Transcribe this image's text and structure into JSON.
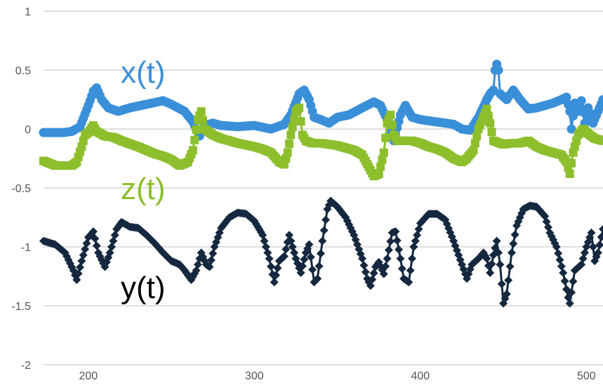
{
  "chart_data": {
    "type": "line",
    "title": "",
    "xlabel": "",
    "ylabel": "",
    "xlim": [
      173,
      510
    ],
    "ylim": [
      -2,
      1
    ],
    "xticks": [
      "200",
      "300",
      "400",
      "500"
    ],
    "yticks": [
      "1",
      "0.5",
      "0",
      "-0.5",
      "-1",
      "-1.5",
      "-2"
    ],
    "grid": true,
    "legend": "inline labels",
    "series": [
      {
        "name": "x(t)",
        "color": "#3a8fd9",
        "marker": "circle",
        "points": [
          [
            173,
            -0.03
          ],
          [
            185,
            -0.03
          ],
          [
            190,
            -0.02
          ],
          [
            195,
            0.02
          ],
          [
            200,
            0.2
          ],
          [
            203,
            0.32
          ],
          [
            205,
            0.35
          ],
          [
            208,
            0.25
          ],
          [
            212,
            0.18
          ],
          [
            218,
            0.15
          ],
          [
            225,
            0.18
          ],
          [
            235,
            0.21
          ],
          [
            245,
            0.24
          ],
          [
            250,
            0.21
          ],
          [
            258,
            0.15
          ],
          [
            263,
            0.06
          ],
          [
            267,
            -0.06
          ],
          [
            270,
            0.03
          ],
          [
            275,
            0.05
          ],
          [
            280,
            0.03
          ],
          [
            290,
            0.02
          ],
          [
            300,
            0.03
          ],
          [
            310,
            0.0
          ],
          [
            318,
            0.04
          ],
          [
            322,
            0.12
          ],
          [
            327,
            0.3
          ],
          [
            330,
            0.33
          ],
          [
            333,
            0.25
          ],
          [
            336,
            0.1
          ],
          [
            340,
            0.08
          ],
          [
            345,
            0.05
          ],
          [
            350,
            0.1
          ],
          [
            357,
            0.12
          ],
          [
            365,
            0.18
          ],
          [
            372,
            0.23
          ],
          [
            376,
            0.2
          ],
          [
            380,
            0.08
          ],
          [
            384,
            -0.1
          ],
          [
            388,
            0.12
          ],
          [
            391,
            0.2
          ],
          [
            395,
            0.1
          ],
          [
            400,
            0.08
          ],
          [
            410,
            0.06
          ],
          [
            420,
            0.04
          ],
          [
            425,
            0.0
          ],
          [
            430,
            -0.01
          ],
          [
            435,
            0.1
          ],
          [
            440,
            0.25
          ],
          [
            442,
            0.3
          ],
          [
            444,
            0.33
          ],
          [
            445,
            0.5
          ],
          [
            446,
            0.55
          ],
          [
            447,
            0.5
          ],
          [
            448,
            0.3
          ],
          [
            452,
            0.25
          ],
          [
            456,
            0.33
          ],
          [
            460,
            0.25
          ],
          [
            465,
            0.17
          ],
          [
            470,
            0.18
          ],
          [
            475,
            0.2
          ],
          [
            480,
            0.22
          ],
          [
            485,
            0.25
          ],
          [
            488,
            0.27
          ],
          [
            490,
            0.15
          ],
          [
            491,
            0.0
          ],
          [
            493,
            0.22
          ],
          [
            495,
            0.15
          ],
          [
            497,
            0.24
          ],
          [
            499,
            0.05
          ],
          [
            501,
            0.18
          ],
          [
            504,
            0.05
          ],
          [
            507,
            0.15
          ],
          [
            510,
            0.25
          ]
        ]
      },
      {
        "name": "y(t)",
        "color": "#15283f",
        "marker": "diamond",
        "points": [
          [
            173,
            -0.95
          ],
          [
            180,
            -0.98
          ],
          [
            186,
            -1.05
          ],
          [
            191,
            -1.2
          ],
          [
            193,
            -1.28
          ],
          [
            196,
            -1.12
          ],
          [
            200,
            -0.92
          ],
          [
            203,
            -0.87
          ],
          [
            206,
            -1.05
          ],
          [
            210,
            -1.17
          ],
          [
            213,
            -1.05
          ],
          [
            217,
            -0.85
          ],
          [
            220,
            -0.79
          ],
          [
            225,
            -0.83
          ],
          [
            230,
            -0.84
          ],
          [
            235,
            -0.9
          ],
          [
            240,
            -0.97
          ],
          [
            245,
            -1.05
          ],
          [
            250,
            -1.12
          ],
          [
            255,
            -1.15
          ],
          [
            258,
            -1.2
          ],
          [
            262,
            -1.28
          ],
          [
            265,
            -1.2
          ],
          [
            268,
            -1.05
          ],
          [
            271,
            -1.15
          ],
          [
            273,
            -1.17
          ],
          [
            276,
            -1.0
          ],
          [
            280,
            -0.84
          ],
          [
            285,
            -0.75
          ],
          [
            290,
            -0.71
          ],
          [
            295,
            -0.72
          ],
          [
            300,
            -0.78
          ],
          [
            305,
            -0.9
          ],
          [
            309,
            -1.1
          ],
          [
            312,
            -1.3
          ],
          [
            315,
            -1.12
          ],
          [
            318,
            -1.08
          ],
          [
            321,
            -0.9
          ],
          [
            325,
            -1.1
          ],
          [
            328,
            -1.22
          ],
          [
            331,
            -1.05
          ],
          [
            333,
            -0.98
          ],
          [
            336,
            -1.3
          ],
          [
            338,
            -1.27
          ],
          [
            341,
            -0.95
          ],
          [
            344,
            -0.68
          ],
          [
            346,
            -0.61
          ],
          [
            350,
            -0.66
          ],
          [
            355,
            -0.75
          ],
          [
            360,
            -0.9
          ],
          [
            365,
            -1.1
          ],
          [
            368,
            -1.27
          ],
          [
            370,
            -1.33
          ],
          [
            373,
            -1.17
          ],
          [
            375,
            -1.13
          ],
          [
            378,
            -1.23
          ],
          [
            380,
            -1.1
          ],
          [
            383,
            -0.88
          ],
          [
            385,
            -0.87
          ],
          [
            388,
            -1.1
          ],
          [
            390,
            -1.27
          ],
          [
            393,
            -1.3
          ],
          [
            396,
            -1.0
          ],
          [
            400,
            -0.8
          ],
          [
            405,
            -0.72
          ],
          [
            410,
            -0.72
          ],
          [
            415,
            -0.77
          ],
          [
            420,
            -0.95
          ],
          [
            425,
            -1.15
          ],
          [
            428,
            -1.27
          ],
          [
            431,
            -1.15
          ],
          [
            435,
            -1.1
          ],
          [
            438,
            -1.05
          ],
          [
            440,
            -1.1
          ],
          [
            442,
            -1.22
          ],
          [
            444,
            -1.07
          ],
          [
            446,
            -0.95
          ],
          [
            448,
            -1.15
          ],
          [
            450,
            -1.48
          ],
          [
            452,
            -1.4
          ],
          [
            455,
            -1.05
          ],
          [
            458,
            -0.82
          ],
          [
            462,
            -0.68
          ],
          [
            466,
            -0.65
          ],
          [
            470,
            -0.66
          ],
          [
            475,
            -0.74
          ],
          [
            478,
            -0.88
          ],
          [
            482,
            -1.0
          ],
          [
            486,
            -1.22
          ],
          [
            489,
            -1.43
          ],
          [
            490,
            -1.48
          ],
          [
            493,
            -1.2
          ],
          [
            497,
            -1.15
          ],
          [
            500,
            -1.0
          ],
          [
            503,
            -0.88
          ],
          [
            505,
            -1.12
          ],
          [
            507,
            -1.05
          ],
          [
            510,
            -0.85
          ]
        ]
      },
      {
        "name": "z(t)",
        "color": "#8dbf2d",
        "marker": "square",
        "points": [
          [
            173,
            -0.27
          ],
          [
            180,
            -0.31
          ],
          [
            190,
            -0.31
          ],
          [
            193,
            -0.28
          ],
          [
            196,
            -0.15
          ],
          [
            198,
            -0.05
          ],
          [
            200,
            -0.03
          ],
          [
            203,
            0.03
          ],
          [
            205,
            -0.02
          ],
          [
            210,
            -0.06
          ],
          [
            215,
            -0.07
          ],
          [
            220,
            -0.1
          ],
          [
            230,
            -0.15
          ],
          [
            240,
            -0.21
          ],
          [
            245,
            -0.23
          ],
          [
            250,
            -0.26
          ],
          [
            255,
            -0.31
          ],
          [
            260,
            -0.28
          ],
          [
            263,
            -0.18
          ],
          [
            266,
            0.08
          ],
          [
            268,
            0.15
          ],
          [
            270,
            0.0
          ],
          [
            275,
            -0.05
          ],
          [
            280,
            -0.08
          ],
          [
            285,
            -0.1
          ],
          [
            290,
            -0.12
          ],
          [
            300,
            -0.15
          ],
          [
            305,
            -0.17
          ],
          [
            310,
            -0.2
          ],
          [
            315,
            -0.28
          ],
          [
            318,
            -0.3
          ],
          [
            320,
            -0.2
          ],
          [
            322,
            -0.05
          ],
          [
            325,
            0.15
          ],
          [
            327,
            0.18
          ],
          [
            329,
            -0.05
          ],
          [
            331,
            -0.1
          ],
          [
            335,
            -0.12
          ],
          [
            340,
            -0.12
          ],
          [
            350,
            -0.14
          ],
          [
            360,
            -0.18
          ],
          [
            365,
            -0.22
          ],
          [
            370,
            -0.35
          ],
          [
            372,
            -0.4
          ],
          [
            375,
            -0.38
          ],
          [
            378,
            -0.2
          ],
          [
            380,
            0.05
          ],
          [
            382,
            0.12
          ],
          [
            384,
            -0.05
          ],
          [
            386,
            -0.1
          ],
          [
            390,
            -0.1
          ],
          [
            395,
            -0.1
          ],
          [
            400,
            -0.12
          ],
          [
            405,
            -0.15
          ],
          [
            410,
            -0.17
          ],
          [
            415,
            -0.2
          ],
          [
            420,
            -0.25
          ],
          [
            425,
            -0.28
          ],
          [
            428,
            -0.25
          ],
          [
            432,
            -0.18
          ],
          [
            435,
            0.0
          ],
          [
            438,
            0.1
          ],
          [
            440,
            0.17
          ],
          [
            442,
            0.05
          ],
          [
            444,
            -0.1
          ],
          [
            450,
            -0.13
          ],
          [
            455,
            -0.12
          ],
          [
            460,
            -0.12
          ],
          [
            465,
            -0.1
          ],
          [
            470,
            -0.15
          ],
          [
            475,
            -0.18
          ],
          [
            480,
            -0.2
          ],
          [
            485,
            -0.22
          ],
          [
            488,
            -0.28
          ],
          [
            490,
            -0.38
          ],
          [
            492,
            -0.2
          ],
          [
            495,
            -0.05
          ],
          [
            498,
            0.0
          ],
          [
            502,
            -0.05
          ],
          [
            505,
            -0.08
          ],
          [
            510,
            -0.1
          ]
        ]
      }
    ]
  }
}
